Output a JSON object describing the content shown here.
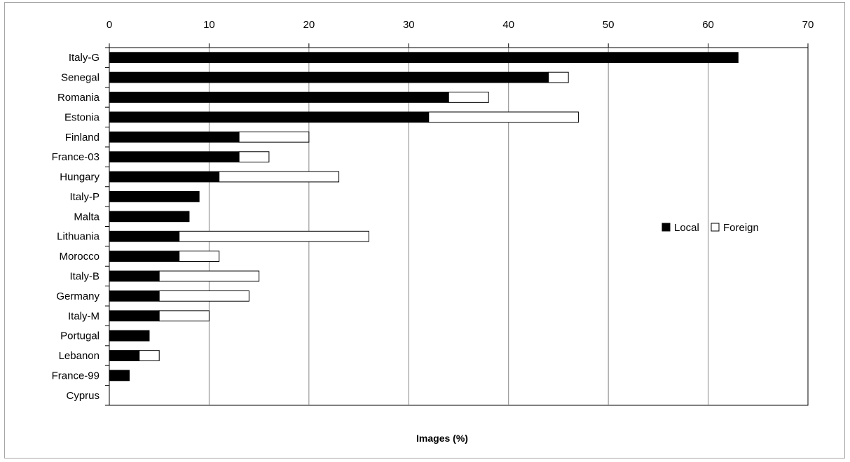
{
  "chart_data": {
    "type": "bar",
    "orientation": "horizontal",
    "stacked": true,
    "title": "",
    "xlabel": "Images (%)",
    "ylabel": "",
    "xlim": [
      0,
      70
    ],
    "x_ticks": [
      0,
      10,
      20,
      30,
      40,
      50,
      60,
      70
    ],
    "categories": [
      "Italy-G",
      "Senegal",
      "Romania",
      "Estonia",
      "Finland",
      "France-03",
      "Hungary",
      "Italy-P",
      "Malta",
      "Lithuania",
      "Morocco",
      "Italy-B",
      "Germany",
      "Italy-M",
      "Portugal",
      "Lebanon",
      "France-99",
      "Cyprus"
    ],
    "series": [
      {
        "name": "Local",
        "color": "#000000",
        "values": [
          63,
          44,
          34,
          32,
          13,
          13,
          11,
          9,
          8,
          7,
          7,
          5,
          5,
          5,
          4,
          3,
          2,
          0
        ]
      },
      {
        "name": "Foreign",
        "color": "#ffffff",
        "values": [
          0,
          2,
          4,
          15,
          7,
          3,
          12,
          0,
          0,
          19,
          4,
          10,
          9,
          5,
          0,
          2,
          0,
          0
        ]
      }
    ],
    "grid": "vertical",
    "legend_position": "right"
  }
}
